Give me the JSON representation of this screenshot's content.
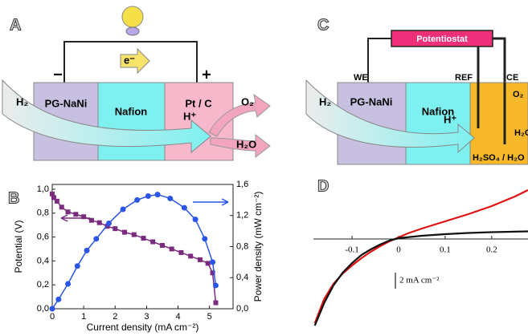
{
  "panel_a": {
    "letter": "A",
    "electron": "e⁻",
    "minus": "−",
    "plus": "+",
    "layers": [
      "PG-NaNi",
      "Nafion",
      "Pt / C"
    ],
    "h2": "H₂",
    "hplus": "H⁺",
    "o2": "O₂",
    "h2o": "H₂O"
  },
  "panel_c": {
    "letter": "C",
    "potentiostat": "Potentiostat",
    "electrodes": [
      "WE",
      "REF",
      "CE"
    ],
    "layers": [
      "PG-NaNi",
      "Nafion",
      "H₂SO₄ / H₂O"
    ],
    "h2": "H₂",
    "hplus": "H⁺",
    "o2": "O₂",
    "h2o": "H₂O"
  },
  "chart_data": [
    {
      "type": "scatter",
      "label": "B",
      "x_label": "Current density (mA cm⁻²)",
      "y_label": "Potential (V)",
      "y2_label": "Power density (mW cm⁻²)",
      "xlim": [
        0,
        5.75
      ],
      "xticks": [
        0,
        1,
        2,
        3,
        4,
        5
      ],
      "ylim": [
        0,
        1.04
      ],
      "yticks": [
        {
          "value": 0,
          "label": "0,0"
        },
        {
          "value": 0.2,
          "label": "0,2"
        },
        {
          "value": 0.4,
          "label": "0,4"
        },
        {
          "value": 0.6,
          "label": "0,6"
        },
        {
          "value": 0.8,
          "label": "0,8"
        },
        {
          "value": 1.0,
          "label": "1,0"
        }
      ],
      "y2lim": [
        0,
        1.6
      ],
      "y2ticks": [
        {
          "value": 0,
          "label": "0,0"
        },
        {
          "value": 0.4,
          "label": "0,4"
        },
        {
          "value": 0.8,
          "label": "0,8"
        },
        {
          "value": 1.2,
          "label": "1,2"
        },
        {
          "value": 1.6,
          "label": "1,6"
        }
      ],
      "series": [
        {
          "color": "#7a2a7f",
          "marker": "square",
          "axis": "y",
          "x": [
            0,
            0.05,
            0.15,
            0.3,
            0.5,
            0.75,
            1.0,
            1.25,
            1.5,
            1.75,
            2.0,
            2.3,
            2.6,
            2.9,
            3.2,
            3.5,
            3.8,
            4.1,
            4.4,
            4.7,
            4.95,
            5.1,
            5.2
          ],
          "values": [
            0.96,
            0.93,
            0.9,
            0.85,
            0.81,
            0.79,
            0.77,
            0.74,
            0.72,
            0.69,
            0.67,
            0.64,
            0.62,
            0.59,
            0.56,
            0.53,
            0.5,
            0.47,
            0.44,
            0.41,
            0.38,
            0.3,
            0.05
          ]
        },
        {
          "color": "#2a55e8",
          "marker": "circle",
          "axis": "y2",
          "x": [
            0,
            0.2,
            0.5,
            0.8,
            1.1,
            1.4,
            1.8,
            2.25,
            2.7,
            3.05,
            3.35,
            3.75,
            4.2,
            4.55,
            4.85,
            5.1,
            5.2
          ],
          "values": [
            0,
            0.12,
            0.32,
            0.55,
            0.75,
            0.9,
            1.1,
            1.28,
            1.4,
            1.45,
            1.47,
            1.42,
            1.3,
            1.15,
            0.9,
            0.6,
            0.3
          ]
        }
      ]
    },
    {
      "type": "line",
      "label": "D",
      "xlim": [
        -0.183,
        0.278
      ],
      "xticks": [
        -0.1,
        0,
        0.1,
        0.2
      ],
      "ylim": [
        -11.4,
        8.3
      ],
      "scalebar": {
        "value": 2,
        "label": "2 mA cm⁻²"
      },
      "series": [
        {
          "color": "#e01010",
          "x": [
            -0.18,
            -0.16,
            -0.14,
            -0.12,
            -0.1,
            -0.08,
            -0.06,
            -0.04,
            -0.02,
            0,
            0.02,
            0.05,
            0.1,
            0.15,
            0.2,
            0.25,
            0.278
          ],
          "values": [
            -10.5,
            -7.5,
            -5.6,
            -4.3,
            -3.3,
            -2.4,
            -1.6,
            -0.9,
            -0.3,
            0.2,
            0.7,
            1.3,
            2.2,
            3.1,
            4.1,
            5.3,
            6.1
          ]
        },
        {
          "color": "#111111",
          "x": [
            -0.18,
            -0.16,
            -0.14,
            -0.12,
            -0.1,
            -0.08,
            -0.06,
            -0.04,
            -0.02,
            0,
            0.05,
            0.1,
            0.15,
            0.2,
            0.278
          ],
          "values": [
            -10.8,
            -8.0,
            -5.8,
            -4.2,
            -3.0,
            -2.0,
            -1.3,
            -0.7,
            -0.2,
            0.1,
            0.4,
            0.6,
            0.75,
            0.85,
            0.95
          ]
        }
      ]
    }
  ]
}
